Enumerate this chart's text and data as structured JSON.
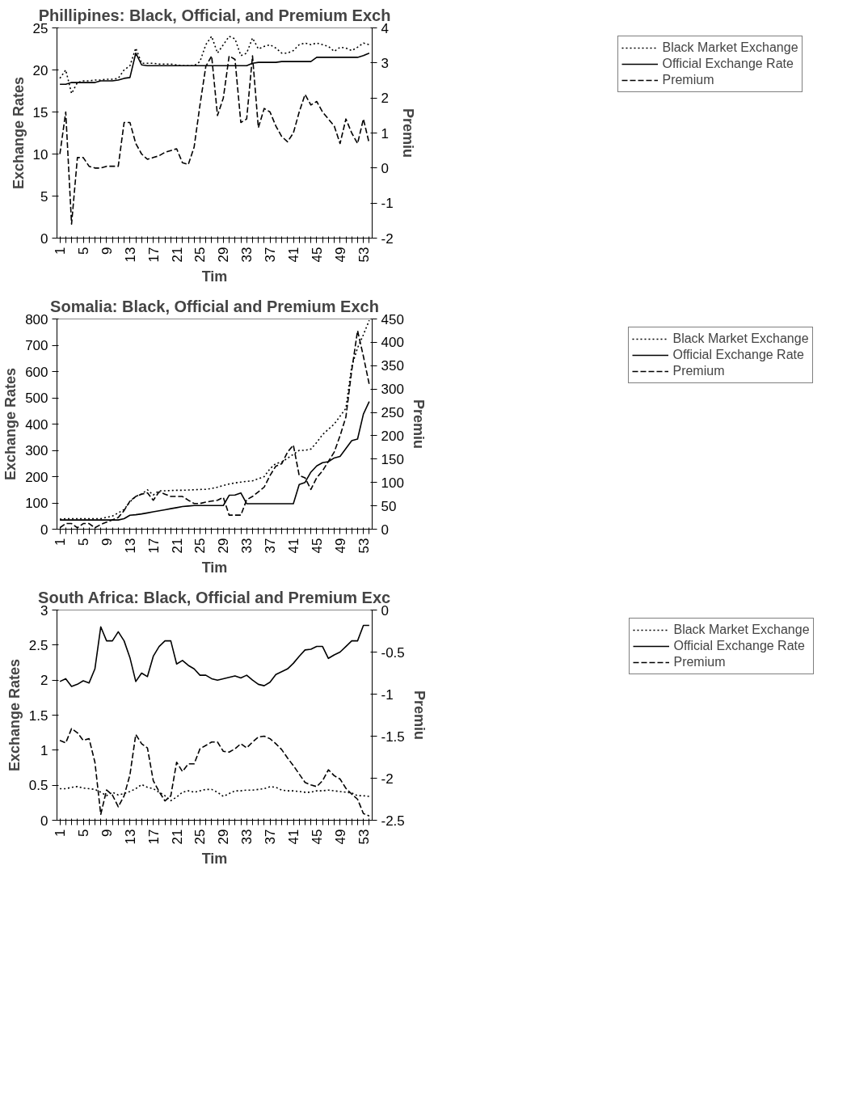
{
  "chart_data": [
    {
      "type": "line",
      "title": "Phillipines: Black, Official, and Premium Exch",
      "xlabel": "Tim",
      "ylabel": "Exchange Rates",
      "y2label": "Premiu",
      "legend": "right",
      "categories": [
        "1",
        null,
        null,
        null,
        "5",
        null,
        null,
        null,
        "9",
        null,
        null,
        null,
        "13",
        null,
        null,
        null,
        "17",
        null,
        null,
        null,
        "21",
        null,
        null,
        null,
        "25",
        null,
        null,
        null,
        "29",
        null,
        null,
        null,
        "33",
        null,
        null,
        null,
        "37",
        null,
        null,
        null,
        "41",
        null,
        null,
        null,
        "45",
        null,
        null,
        null,
        "49",
        null,
        null,
        null,
        "53",
        null
      ],
      "ylim": [
        0,
        25
      ],
      "yticks": [
        0,
        5,
        10,
        15,
        20,
        25
      ],
      "y2lim": [
        -2,
        4
      ],
      "y2ticks": [
        -2,
        -1,
        0,
        1,
        2,
        3,
        4
      ],
      "series": [
        {
          "name": "Black Market Exchange",
          "color": "#000000",
          "line_style": "dotted",
          "values": [
            19,
            20,
            17.2,
            18.5,
            18.7,
            18.7,
            18.8,
            18.8,
            18.9,
            18.9,
            19,
            20,
            20.5,
            22.6,
            20.8,
            20.8,
            20.8,
            20.7,
            20.7,
            20.7,
            20.6,
            20.5,
            20.5,
            20.5,
            21,
            23,
            24,
            22,
            23,
            24,
            23.7,
            21.7,
            22,
            23.8,
            22.5,
            22.8,
            23,
            22.6,
            22,
            22,
            22.3,
            23,
            23.2,
            23,
            23.2,
            23,
            22.8,
            22.2,
            22.7,
            22.6,
            22.3,
            22.7,
            23.2,
            23
          ]
        },
        {
          "name": "Official Exchange Rate",
          "color": "#000000",
          "line_style": "solid",
          "values": [
            18.3,
            18.3,
            18.5,
            18.5,
            18.5,
            18.5,
            18.5,
            18.7,
            18.7,
            18.7,
            18.8,
            19,
            19.1,
            22,
            20.6,
            20.5,
            20.5,
            20.5,
            20.5,
            20.5,
            20.5,
            20.5,
            20.5,
            20.5,
            20.5,
            20.5,
            20.5,
            20.5,
            20.5,
            20.5,
            20.5,
            20.5,
            20.5,
            20.8,
            20.9,
            20.9,
            20.9,
            20.9,
            21,
            21,
            21,
            21,
            21,
            21,
            21.5,
            21.5,
            21.5,
            21.5,
            21.5,
            21.5,
            21.5,
            21.5,
            21.7,
            22
          ]
        },
        {
          "name": "Premium",
          "color": "#000000",
          "line_style": "dashed",
          "axis": "y2",
          "values": [
            0.4,
            1.6,
            -1.6,
            0.3,
            0.3,
            0.05,
            0,
            0,
            0.05,
            0.05,
            0.05,
            1.3,
            1.3,
            0.7,
            0.4,
            0.25,
            0.3,
            0.35,
            0.45,
            0.5,
            0.55,
            0.15,
            0.1,
            0.6,
            1.8,
            2.9,
            3.2,
            1.5,
            2,
            3.2,
            3.1,
            1.3,
            1.4,
            3.2,
            1.15,
            1.7,
            1.6,
            1.2,
            0.9,
            0.75,
            1,
            1.6,
            2.1,
            1.8,
            1.9,
            1.6,
            1.4,
            1.2,
            0.7,
            1.4,
            1,
            0.7,
            1.4,
            0.7
          ]
        }
      ]
    },
    {
      "type": "line",
      "title": "Somalia: Black, Official and Premium Exch",
      "xlabel": "Tim",
      "ylabel": "Exchange Rates",
      "y2label": "Premiu",
      "legend": "right",
      "categories": [
        "1",
        null,
        null,
        null,
        "5",
        null,
        null,
        null,
        "9",
        null,
        null,
        null,
        "13",
        null,
        null,
        null,
        "17",
        null,
        null,
        null,
        "21",
        null,
        null,
        null,
        "25",
        null,
        null,
        null,
        "29",
        null,
        null,
        null,
        "33",
        null,
        null,
        null,
        "37",
        null,
        null,
        null,
        "41",
        null,
        null,
        null,
        "45",
        null,
        null,
        null,
        "49",
        null,
        null,
        null,
        "53",
        null
      ],
      "ylim": [
        0,
        800
      ],
      "yticks": [
        0,
        100,
        200,
        300,
        400,
        500,
        600,
        700,
        800
      ],
      "y2lim": [
        0,
        450
      ],
      "y2ticks": [
        0,
        50,
        100,
        150,
        200,
        250,
        300,
        350,
        400,
        450
      ],
      "series": [
        {
          "name": "Black Market Exchange",
          "color": "#000000",
          "line_style": "dotted",
          "values": [
            38,
            40,
            40,
            40,
            40,
            40,
            40,
            40,
            45,
            50,
            62,
            75,
            104,
            125,
            134,
            150,
            130,
            146,
            146,
            147,
            148,
            148,
            149,
            150,
            151,
            152,
            155,
            160,
            166,
            172,
            176,
            179,
            182,
            184,
            192,
            200,
            230,
            250,
            255,
            270,
            285,
            300,
            300,
            305,
            330,
            360,
            380,
            400,
            430,
            460,
            620,
            690,
            740,
            795
          ]
        },
        {
          "name": "Official Exchange Rate",
          "color": "#000000",
          "line_style": "solid",
          "values": [
            35,
            35,
            35,
            35,
            35,
            35,
            35,
            35,
            35,
            35,
            35,
            40,
            53,
            55,
            58,
            62,
            66,
            70,
            74,
            78,
            82,
            86,
            88,
            90,
            90,
            90,
            90,
            90,
            90,
            129,
            130,
            138,
            97,
            97,
            97,
            97,
            97,
            97,
            97,
            97,
            97,
            170,
            178,
            217,
            241,
            253,
            257,
            271,
            277,
            307,
            337,
            343,
            438,
            486
          ]
        },
        {
          "name": "Premium",
          "color": "#000000",
          "line_style": "dashed",
          "axis": "y2",
          "values": [
            3,
            12,
            12,
            3,
            12,
            12,
            3,
            10,
            15,
            20,
            25,
            40,
            60,
            70,
            75,
            78,
            62,
            80,
            75,
            70,
            70,
            70,
            62,
            55,
            55,
            58,
            60,
            62,
            68,
            30,
            30,
            30,
            63,
            70,
            80,
            90,
            115,
            135,
            140,
            165,
            180,
            115,
            110,
            85,
            110,
            125,
            145,
            165,
            200,
            240,
            340,
            425,
            370,
            310
          ]
        }
      ]
    },
    {
      "type": "line",
      "title": "South Africa: Black, Official and Premium Exc",
      "xlabel": "Tim",
      "ylabel": "Exchange Rates",
      "y2label": "Premiu",
      "legend": "right",
      "categories": [
        "1",
        null,
        null,
        null,
        "5",
        null,
        null,
        null,
        "9",
        null,
        null,
        null,
        "13",
        null,
        null,
        null,
        "17",
        null,
        null,
        null,
        "21",
        null,
        null,
        null,
        "25",
        null,
        null,
        null,
        "29",
        null,
        null,
        null,
        "33",
        null,
        null,
        null,
        "37",
        null,
        null,
        null,
        "41",
        null,
        null,
        null,
        "45",
        null,
        null,
        null,
        "49",
        null,
        null,
        null,
        "53",
        null
      ],
      "ylim": [
        0,
        3
      ],
      "yticks": [
        0,
        0.5,
        1,
        1.5,
        2,
        2.5,
        3
      ],
      "y2lim": [
        -2.5,
        0
      ],
      "y2ticks": [
        -2.5,
        -2,
        -1.5,
        -1,
        -0.5,
        0
      ],
      "series": [
        {
          "name": "Black Market Exchange",
          "color": "#000000",
          "line_style": "dotted",
          "values": [
            0.45,
            0.45,
            0.47,
            0.48,
            0.46,
            0.45,
            0.44,
            0.4,
            0.35,
            0.4,
            0.36,
            0.38,
            0.41,
            0.45,
            0.51,
            0.47,
            0.45,
            0.4,
            0.35,
            0.28,
            0.33,
            0.4,
            0.42,
            0.4,
            0.42,
            0.44,
            0.44,
            0.4,
            0.34,
            0.38,
            0.42,
            0.42,
            0.43,
            0.43,
            0.44,
            0.45,
            0.48,
            0.47,
            0.43,
            0.42,
            0.42,
            0.41,
            0.4,
            0.4,
            0.42,
            0.42,
            0.43,
            0.42,
            0.41,
            0.4,
            0.39,
            0.35,
            0.35,
            0.34
          ]
        },
        {
          "name": "Official Exchange Rate",
          "color": "#000000",
          "line_style": "solid",
          "values": [
            1.98,
            2.02,
            1.91,
            1.94,
            1.99,
            1.96,
            2.16,
            2.76,
            2.56,
            2.56,
            2.69,
            2.56,
            2.32,
            1.98,
            2.1,
            2.05,
            2.34,
            2.48,
            2.56,
            2.56,
            2.23,
            2.28,
            2.21,
            2.16,
            2.07,
            2.07,
            2.02,
            2,
            2.02,
            2.04,
            2.06,
            2.03,
            2.07,
            2,
            1.94,
            1.92,
            1.97,
            2.08,
            2.12,
            2.16,
            2.24,
            2.34,
            2.43,
            2.44,
            2.48,
            2.48,
            2.31,
            2.36,
            2.4,
            2.48,
            2.56,
            2.56,
            2.78,
            2.78
          ]
        },
        {
          "name": "Premium",
          "color": "#000000",
          "line_style": "dashed",
          "axis": "y2",
          "values": [
            -1.55,
            -1.58,
            -1.41,
            -1.46,
            -1.55,
            -1.53,
            -1.81,
            -2.43,
            -2.14,
            -2.2,
            -2.34,
            -2.21,
            -1.96,
            -1.48,
            -1.59,
            -1.64,
            -2.03,
            -2.16,
            -2.27,
            -2.21,
            -1.81,
            -1.92,
            -1.83,
            -1.83,
            -1.65,
            -1.61,
            -1.57,
            -1.57,
            -1.68,
            -1.69,
            -1.65,
            -1.59,
            -1.64,
            -1.57,
            -1.51,
            -1.5,
            -1.53,
            -1.59,
            -1.66,
            -1.76,
            -1.85,
            -1.95,
            -2.05,
            -2.08,
            -2.1,
            -2.03,
            -1.9,
            -1.97,
            -2.01,
            -2.12,
            -2.19,
            -2.25,
            -2.42,
            -2.45
          ]
        }
      ]
    }
  ]
}
